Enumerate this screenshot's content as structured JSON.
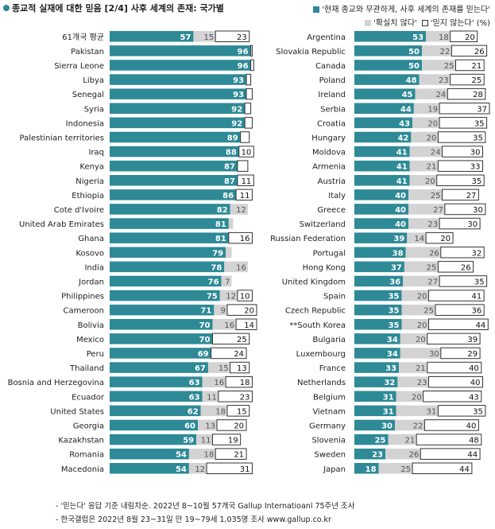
{
  "title": "종교적 실재에 대한 믿음 [2/4] 사후 세계의 존재: 국가별",
  "legend": {
    "yes": "'현재 종교와 무관하게, 사후 세계의 존재를 믿는다'",
    "unsure": "'확실치 않다'",
    "no": "'믿지 않는다'",
    "unit": "(%)"
  },
  "colors": {
    "yes": "#2d8a96",
    "unsure": "#d3d3d3",
    "no": "#ffffff",
    "no_border": "#333333"
  },
  "notes": [
    "- '믿는다' 응답 기준 내림차순. 2022년 8~10월 57개국 Gallup Internatioanl 75주년 조사",
    "- 한국갤럽은 2022년 8월 23~31일 만 19~79세 1,035명 조사 www.gallup.co.kr"
  ],
  "chart_data": [
    {
      "type": "bar",
      "stacked": true,
      "orientation": "horizontal",
      "categories": [
        "61개국 평균",
        "Pakistan",
        "Sierra Leone",
        "Libya",
        "Senegal",
        "Syria",
        "Indonesia",
        "Palestinian territories",
        "Iraq",
        "Kenya",
        "Nigeria",
        "Ethiopia",
        "Cote d'Ivoire",
        "United Arab Emirates",
        "Ghana",
        "Kosovo",
        "India",
        "Jordan",
        "Philippines",
        "Cameroon",
        "Bolivia",
        "Mexico",
        "Peru",
        "Thailand",
        "Bosnia and Herzegovina",
        "Ecuador",
        "United States",
        "Georgia",
        "Kazakhstan",
        "Romania",
        "Macedonia"
      ],
      "series": [
        {
          "name": "'현재 종교와 무관하게, 사후 세계의 존재를 믿는다'",
          "values": [
            57,
            96,
            96,
            93,
            93,
            92,
            92,
            89,
            88,
            87,
            87,
            86,
            82,
            81,
            81,
            79,
            78,
            76,
            75,
            71,
            70,
            70,
            69,
            67,
            63,
            63,
            62,
            60,
            59,
            54,
            54
          ]
        },
        {
          "name": "'확실치 않다'",
          "values": [
            15,
            0,
            0,
            0,
            0,
            0,
            0,
            0,
            0,
            0,
            0,
            0,
            12,
            3,
            0,
            4,
            16,
            7,
            12,
            9,
            16,
            0,
            0,
            15,
            16,
            11,
            18,
            13,
            11,
            18,
            12
          ]
        },
        {
          "name": "'믿지 않는다'",
          "values": [
            23,
            1,
            2,
            3,
            4,
            4,
            5,
            6,
            10,
            7,
            11,
            11,
            0,
            0,
            16,
            0,
            0,
            0,
            10,
            20,
            14,
            25,
            24,
            13,
            18,
            23,
            15,
            20,
            19,
            21,
            31
          ]
        }
      ],
      "value_labels": [
        [
          "57",
          "96",
          "96",
          "93",
          "93",
          "92",
          "92",
          "89",
          "88",
          "87",
          "87",
          "86",
          "82",
          "81",
          "81",
          "79",
          "78",
          "76",
          "75",
          "71",
          "70",
          "70",
          "69",
          "67",
          "63",
          "63",
          "62",
          "60",
          "59",
          "54",
          "54"
        ],
        [
          "15",
          "",
          "",
          "",
          "",
          "",
          "",
          "",
          "",
          "",
          "",
          "",
          "12",
          "",
          "",
          "",
          "16",
          "7",
          "12",
          "9",
          "16",
          "",
          "",
          "15",
          "16",
          "11",
          "18",
          "13",
          "11",
          "18",
          "12"
        ],
        [
          "23",
          "",
          "",
          "",
          "",
          "",
          "",
          "",
          "10",
          "",
          "11",
          "11",
          "",
          "",
          "16",
          "",
          "",
          "",
          "10",
          "20",
          "14",
          "25",
          "24",
          "13",
          "18",
          "23",
          "15",
          "20",
          "19",
          "21",
          "31"
        ]
      ],
      "xlim": [
        0,
        100
      ]
    },
    {
      "type": "bar",
      "stacked": true,
      "orientation": "horizontal",
      "categories": [
        "Argentina",
        "Slovakia Republic",
        "Canada",
        "Poland",
        "Ireland",
        "Serbia",
        "Croatia",
        "Hungary",
        "Moldova",
        "Armenia",
        "Austria",
        "Italy",
        "Greece",
        "Switzerland",
        "Russian Federation",
        "Portugal",
        "Hong Kong",
        "United Kingdom",
        "Spain",
        "Czech Republic",
        "**South Korea",
        "Bulgaria",
        "Luxembourg",
        "France",
        "Netherlands",
        "Belgium",
        "Vietnam",
        "Germany",
        "Slovenia",
        "Sweden",
        "Japan"
      ],
      "series": [
        {
          "name": "'현재 종교와 무관하게, 사후 세계의 존재를 믿는다'",
          "values": [
            53,
            50,
            50,
            48,
            45,
            44,
            43,
            42,
            41,
            41,
            41,
            40,
            40,
            40,
            39,
            38,
            37,
            36,
            35,
            35,
            35,
            34,
            34,
            33,
            32,
            31,
            31,
            30,
            25,
            23,
            18
          ]
        },
        {
          "name": "'확실치 않다'",
          "values": [
            18,
            22,
            25,
            23,
            24,
            19,
            20,
            20,
            24,
            21,
            20,
            25,
            27,
            23,
            14,
            26,
            25,
            27,
            20,
            25,
            20,
            20,
            30,
            21,
            23,
            20,
            31,
            22,
            21,
            26,
            25
          ]
        },
        {
          "name": "'믿지 않는다'",
          "values": [
            20,
            26,
            21,
            25,
            28,
            37,
            35,
            35,
            30,
            33,
            35,
            27,
            30,
            30,
            20,
            32,
            26,
            35,
            41,
            36,
            44,
            39,
            29,
            40,
            40,
            43,
            35,
            40,
            48,
            44,
            44
          ]
        }
      ],
      "value_labels": [
        [
          "53",
          "50",
          "50",
          "48",
          "45",
          "44",
          "43",
          "42",
          "41",
          "41",
          "41",
          "40",
          "40",
          "40",
          "39",
          "38",
          "37",
          "36",
          "35",
          "35",
          "35",
          "34",
          "34",
          "33",
          "32",
          "31",
          "31",
          "30",
          "25",
          "23",
          "18"
        ],
        [
          "18",
          "22",
          "25",
          "23",
          "24",
          "19",
          "20",
          "20",
          "24",
          "21",
          "20",
          "25",
          "27",
          "23",
          "14",
          "26",
          "25",
          "27",
          "20",
          "25",
          "20",
          "20",
          "30",
          "21",
          "23",
          "20",
          "31",
          "22",
          "21",
          "26",
          "25"
        ],
        [
          "20",
          "26",
          "21",
          "25",
          "28",
          "37",
          "35",
          "35",
          "30",
          "33",
          "35",
          "27",
          "30",
          "30",
          "20",
          "32",
          "26",
          "35",
          "41",
          "36",
          "44",
          "39",
          "29",
          "40",
          "40",
          "43",
          "35",
          "40",
          "48",
          "44",
          "44"
        ]
      ],
      "xlim": [
        0,
        100
      ]
    }
  ]
}
